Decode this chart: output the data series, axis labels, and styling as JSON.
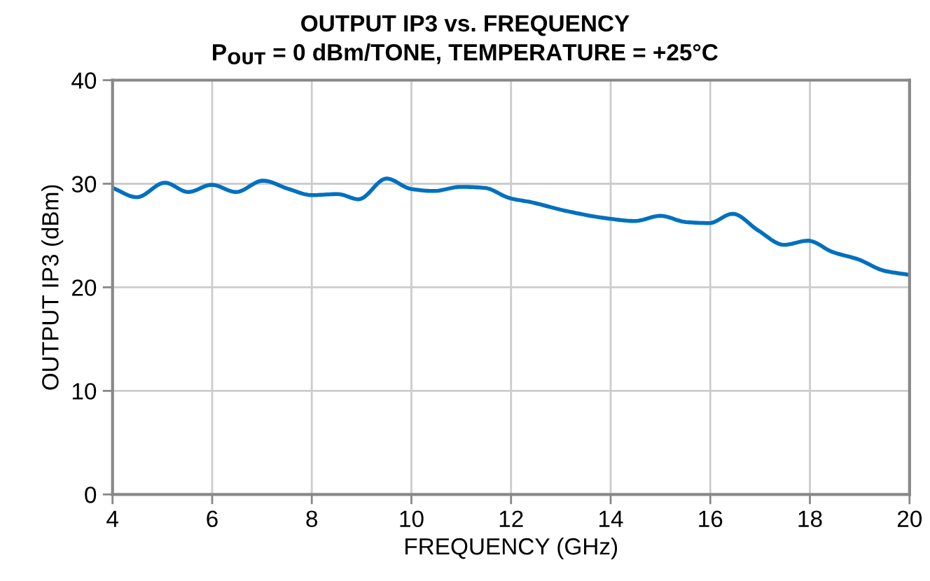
{
  "chart_data": {
    "type": "line",
    "title": "OUTPUT IP3 vs. FREQUENCY",
    "subtitle": "P$_{OUT}$ = 0 dBm/TONE, TEMPERATURE = +25°C",
    "xlabel": "FREQUENCY (GHz)",
    "ylabel": "OUTPUT IP3 (dBm)",
    "series": [
      {
        "color": "#0070c0",
        "x": [
          4.0,
          4.49,
          5.05,
          5.52,
          5.99,
          6.48,
          7.02,
          7.53,
          8.0,
          8.52,
          8.94,
          9.5,
          9.99,
          10.44,
          11.0,
          11.47,
          11.98,
          12.42,
          13.08,
          14.01,
          14.48,
          15.0,
          15.51,
          15.98,
          16.45,
          16.96,
          17.48,
          17.96,
          18.46,
          18.97,
          19.49,
          20.0
        ],
        "values": [
          29.6,
          28.7,
          30.1,
          29.2,
          29.9,
          29.2,
          30.3,
          29.5,
          28.9,
          29.0,
          28.5,
          30.5,
          29.5,
          29.3,
          29.7,
          29.6,
          28.6,
          28.2,
          27.4,
          26.6,
          26.4,
          26.9,
          26.3,
          26.2,
          27.1,
          25.5,
          24.1,
          24.5,
          23.4,
          22.7,
          21.6,
          21.2
        ]
      }
    ],
    "xlim": [
      4,
      20
    ],
    "xticks": [
      4,
      6,
      8,
      10,
      12,
      14,
      16,
      18,
      20
    ],
    "ylim": [
      0,
      40
    ],
    "yticks": [
      0,
      10,
      20,
      30,
      40
    ],
    "grid": true,
    "line_style": "solid",
    "marker": "none"
  }
}
